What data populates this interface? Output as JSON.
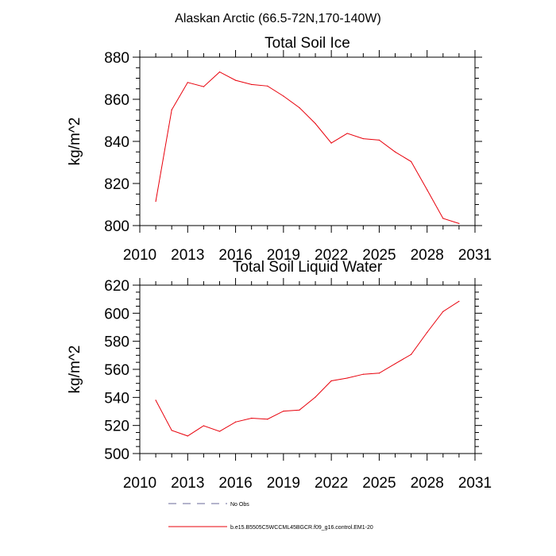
{
  "figure_title": "Alaskan Arctic (66.5-72N,170-140W)",
  "legend": [
    {
      "label": "No Obs",
      "style": "dashed",
      "color": "#6a6a9a"
    },
    {
      "label": "b.e15.B5505C5WCCML45BGCR.f09_g16.control.EM1-20",
      "style": "solid",
      "color": "#e8000b"
    }
  ],
  "chart_data": [
    {
      "type": "line",
      "title": "Total Soil Ice",
      "xlabel": "",
      "ylabel": "kg/m^2",
      "xlim": [
        2010,
        2031
      ],
      "ylim": [
        800,
        880
      ],
      "xticks": [
        2010,
        2013,
        2016,
        2019,
        2022,
        2025,
        2028,
        2031
      ],
      "yticks": [
        800,
        820,
        840,
        860,
        880
      ],
      "series": [
        {
          "name": "b.e15.B5505C5WCCML45BGCR.f09_g16.control.EM1-20",
          "color": "#e8000b",
          "x": [
            2011,
            2012,
            2013,
            2014,
            2015,
            2016,
            2017,
            2018,
            2019,
            2020,
            2021,
            2022,
            2023,
            2024,
            2025,
            2026,
            2027,
            2028,
            2029,
            2030
          ],
          "values": [
            811.5,
            855,
            868,
            866,
            873,
            869,
            867,
            866.3,
            861.5,
            856,
            848.5,
            839.2,
            843.8,
            841.3,
            840.6,
            835,
            830.4,
            817,
            803.4,
            801
          ]
        }
      ]
    },
    {
      "type": "line",
      "title": "Total Soil Liquid Water",
      "xlabel": "",
      "ylabel": "kg/m^2",
      "xlim": [
        2010,
        2031
      ],
      "ylim": [
        500,
        620
      ],
      "xticks": [
        2010,
        2013,
        2016,
        2019,
        2022,
        2025,
        2028,
        2031
      ],
      "yticks": [
        500,
        520,
        540,
        560,
        580,
        600,
        620
      ],
      "series": [
        {
          "name": "b.e15.B5505C5WCCML45BGCR.f09_g16.control.EM1-20",
          "color": "#e8000b",
          "x": [
            2011,
            2012,
            2013,
            2014,
            2015,
            2016,
            2017,
            2018,
            2019,
            2020,
            2021,
            2022,
            2023,
            2024,
            2025,
            2026,
            2027,
            2028,
            2029,
            2030
          ],
          "values": [
            538,
            516.5,
            512.5,
            519.8,
            515.8,
            522.5,
            525.2,
            524.5,
            530.2,
            531,
            540.2,
            551.8,
            553.8,
            556.5,
            557.3,
            564,
            570.6,
            586.3,
            601.2,
            608.5
          ]
        }
      ]
    }
  ]
}
